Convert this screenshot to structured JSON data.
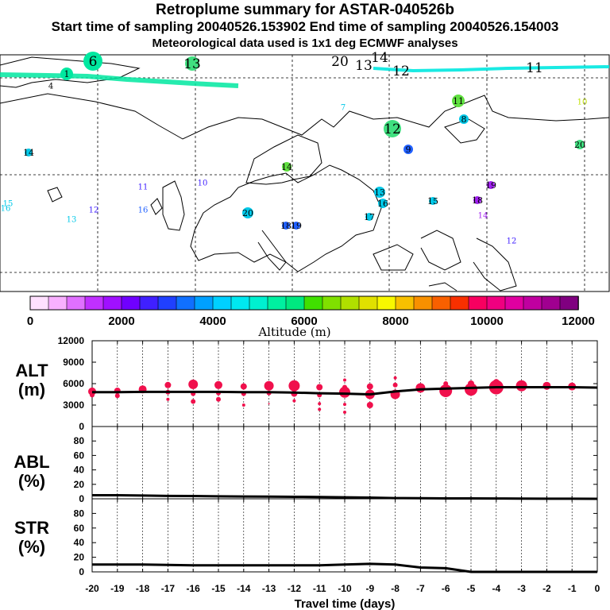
{
  "header": {
    "title": "Retroplume summary for ASTAR-040526b",
    "sampling_line": "Start time of sampling 20040526.153902     End time of sampling 20040526.154003",
    "meteo_line": "Meteorological data used is 1x1 deg ECMWF analyses"
  },
  "map": {
    "description_labels": [],
    "plume_markers": [
      {
        "label": "6",
        "color": "#00e8a0"
      },
      {
        "label": "1",
        "color": "#00e8a0"
      },
      {
        "label": "4",
        "color": "#00e8a0"
      },
      {
        "label": "13",
        "color": "#40e080"
      },
      {
        "label": "20",
        "color": "#00e8a0"
      },
      {
        "label": "13",
        "color": "#00e8a0"
      },
      {
        "label": "14",
        "color": "#00e8a0"
      },
      {
        "label": "12",
        "color": "#00e8a0"
      },
      {
        "label": "11",
        "color": "#00e8a0"
      },
      {
        "label": "7",
        "color": "#00c8e8"
      },
      {
        "label": "11",
        "color": "#60e040"
      },
      {
        "label": "10",
        "color": "#c0e000"
      },
      {
        "label": "8",
        "color": "#00c8e8"
      },
      {
        "label": "12",
        "color": "#40e080"
      },
      {
        "label": "9",
        "color": "#2060ff"
      },
      {
        "label": "20",
        "color": "#40e080"
      },
      {
        "label": "14",
        "color": "#00c8e8"
      },
      {
        "label": "14",
        "color": "#60e040"
      },
      {
        "label": "11",
        "color": "#4020ff"
      },
      {
        "label": "10",
        "color": "#4020ff"
      },
      {
        "label": "13",
        "color": "#00c8e8"
      },
      {
        "label": "19",
        "color": "#a020f0"
      },
      {
        "label": "16",
        "color": "#00c8e8"
      },
      {
        "label": "15",
        "color": "#00c8e8"
      },
      {
        "label": "18",
        "color": "#a020f0"
      },
      {
        "label": "14",
        "color": "#a020f0"
      },
      {
        "label": "16",
        "color": "#2060ff"
      },
      {
        "label": "17",
        "color": "#00c8e8"
      },
      {
        "label": "12",
        "color": "#4020ff"
      },
      {
        "label": "15",
        "color": "#00c8e8"
      },
      {
        "label": "13",
        "color": "#00c8e8"
      },
      {
        "label": "16",
        "color": "#00c8e8"
      },
      {
        "label": "20",
        "color": "#00c8e8"
      },
      {
        "label": "18",
        "color": "#2060ff"
      },
      {
        "label": "19",
        "color": "#2060ff"
      },
      {
        "label": "12",
        "color": "#4020ff"
      }
    ]
  },
  "colorbar": {
    "title": "Altitude (m)",
    "tick_labels": [
      "0",
      "2000",
      "4000",
      "6000",
      "8000",
      "10000",
      "12000"
    ],
    "colors": [
      "#ffe0ff",
      "#f8b0ff",
      "#e070ff",
      "#c030ff",
      "#a010ff",
      "#7000ff",
      "#4020ff",
      "#2040ff",
      "#1070ff",
      "#00a0ff",
      "#00d0ff",
      "#00e8f0",
      "#00f0d0",
      "#00f0a0",
      "#00e880",
      "#40e000",
      "#80e000",
      "#b0e000",
      "#e0e000",
      "#f8f800",
      "#f8c000",
      "#f89000",
      "#f86000",
      "#f83000",
      "#f80060",
      "#f00080",
      "#e000a0",
      "#c000a0",
      "#a00090",
      "#800080"
    ]
  },
  "chart_data": [
    {
      "type": "scatter",
      "panel": "ALT",
      "ylabel": "ALT\n(m)",
      "ylabel_lines": [
        "ALT",
        "(m)"
      ],
      "ylim": [
        0,
        12000
      ],
      "yticks": [
        "0",
        "3000",
        "6000",
        "9000",
        "12000"
      ],
      "mean_line": {
        "x": [
          -20,
          -19,
          -18,
          -17,
          -16,
          -15,
          -14,
          -13,
          -12,
          -11,
          -10,
          -9,
          -8,
          -7,
          -6,
          -5,
          -4,
          -3,
          -2,
          -1,
          0
        ],
        "y": [
          4800,
          4800,
          4850,
          4850,
          4850,
          4850,
          4800,
          4800,
          4750,
          4650,
          4600,
          4500,
          4900,
          5200,
          5300,
          5400,
          5500,
          5500,
          5500,
          5500,
          5450
        ]
      },
      "points": [
        {
          "x": -20,
          "y": 4900,
          "s": 5
        },
        {
          "x": -20,
          "y": 4400,
          "s": 3
        },
        {
          "x": -19,
          "y": 5000,
          "s": 4
        },
        {
          "x": -19,
          "y": 4300,
          "s": 3
        },
        {
          "x": -18,
          "y": 5200,
          "s": 5
        },
        {
          "x": -17,
          "y": 5800,
          "s": 4
        },
        {
          "x": -17,
          "y": 4800,
          "s": 3
        },
        {
          "x": -17,
          "y": 3800,
          "s": 2
        },
        {
          "x": -16,
          "y": 5900,
          "s": 6
        },
        {
          "x": -16,
          "y": 4600,
          "s": 3
        },
        {
          "x": -16,
          "y": 3500,
          "s": 3
        },
        {
          "x": -15,
          "y": 5800,
          "s": 5
        },
        {
          "x": -15,
          "y": 4700,
          "s": 3
        },
        {
          "x": -15,
          "y": 3800,
          "s": 3
        },
        {
          "x": -14,
          "y": 5600,
          "s": 4
        },
        {
          "x": -14,
          "y": 4600,
          "s": 3
        },
        {
          "x": -14,
          "y": 3000,
          "s": 2
        },
        {
          "x": -13,
          "y": 5700,
          "s": 6
        },
        {
          "x": -13,
          "y": 4700,
          "s": 3
        },
        {
          "x": -13,
          "y": 3200,
          "s": 1
        },
        {
          "x": -12,
          "y": 5700,
          "s": 7
        },
        {
          "x": -12,
          "y": 4600,
          "s": 4
        },
        {
          "x": -12,
          "y": 3600,
          "s": 2
        },
        {
          "x": -11,
          "y": 5500,
          "s": 4
        },
        {
          "x": -11,
          "y": 4400,
          "s": 3
        },
        {
          "x": -11,
          "y": 3200,
          "s": 2
        },
        {
          "x": -11,
          "y": 2400,
          "s": 2
        },
        {
          "x": -10,
          "y": 6500,
          "s": 2
        },
        {
          "x": -10,
          "y": 5500,
          "s": 3
        },
        {
          "x": -10,
          "y": 4800,
          "s": 7
        },
        {
          "x": -10,
          "y": 3100,
          "s": 2
        },
        {
          "x": -10,
          "y": 2000,
          "s": 2
        },
        {
          "x": -9,
          "y": 5600,
          "s": 4
        },
        {
          "x": -9,
          "y": 4500,
          "s": 6
        },
        {
          "x": -9,
          "y": 3000,
          "s": 4
        },
        {
          "x": -8,
          "y": 6800,
          "s": 2
        },
        {
          "x": -8,
          "y": 5800,
          "s": 3
        },
        {
          "x": -8,
          "y": 4500,
          "s": 6
        },
        {
          "x": -7,
          "y": 5400,
          "s": 6
        },
        {
          "x": -6,
          "y": 5000,
          "s": 8
        },
        {
          "x": -6,
          "y": 6000,
          "s": 3
        },
        {
          "x": -5,
          "y": 5200,
          "s": 8
        },
        {
          "x": -5,
          "y": 6000,
          "s": 4
        },
        {
          "x": -4,
          "y": 5500,
          "s": 9
        },
        {
          "x": -4,
          "y": 6200,
          "s": 4
        },
        {
          "x": -3,
          "y": 5700,
          "s": 7
        },
        {
          "x": -2,
          "y": 5700,
          "s": 5
        },
        {
          "x": -1,
          "y": 5600,
          "s": 5
        }
      ]
    },
    {
      "type": "line",
      "panel": "ABL",
      "ylabel_lines": [
        "ABL",
        "(%)"
      ],
      "ylim": [
        0,
        100
      ],
      "yticks": [
        "0",
        "20",
        "40",
        "60",
        "80"
      ],
      "x": [
        -20,
        -19,
        -18,
        -17,
        -16,
        -15,
        -14,
        -13,
        -12,
        -11,
        -10,
        -9,
        -8,
        -7,
        -6,
        -5,
        -4,
        -3,
        -2,
        -1,
        0
      ],
      "y": [
        5,
        5,
        4.5,
        4,
        3.8,
        3.5,
        3.2,
        3,
        2.8,
        2.5,
        2,
        1.6,
        1,
        0.8,
        0.6,
        0.5,
        0.4,
        0.3,
        0.2,
        0.1,
        0
      ]
    },
    {
      "type": "line",
      "panel": "STR",
      "ylabel_lines": [
        "STR",
        "(%)"
      ],
      "ylim": [
        0,
        100
      ],
      "yticks": [
        "0",
        "20",
        "40",
        "60",
        "80"
      ],
      "x": [
        -20,
        -19,
        -18,
        -17,
        -16,
        -15,
        -14,
        -13,
        -12,
        -11,
        -10,
        -9,
        -8,
        -7,
        -6,
        -5,
        -4,
        -3,
        -2,
        -1,
        0
      ],
      "y": [
        10,
        10,
        10,
        9.5,
        9,
        9,
        9,
        9,
        9,
        9,
        10,
        11,
        10,
        6,
        5,
        0,
        0,
        0,
        0,
        0,
        0
      ]
    }
  ],
  "x_axis": {
    "title": "Travel time (days)",
    "tick_labels": [
      "-20",
      "-19",
      "-18",
      "-17",
      "-16",
      "-15",
      "-14",
      "-13",
      "-12",
      "-11",
      "-10",
      "-9",
      "-8",
      "-7",
      "-6",
      "-5",
      "-4",
      "-3",
      "-2",
      "-1",
      "0"
    ]
  },
  "colors": {
    "scatter": "#f0104c",
    "line": "#000000",
    "plume": "#00e8a0"
  }
}
